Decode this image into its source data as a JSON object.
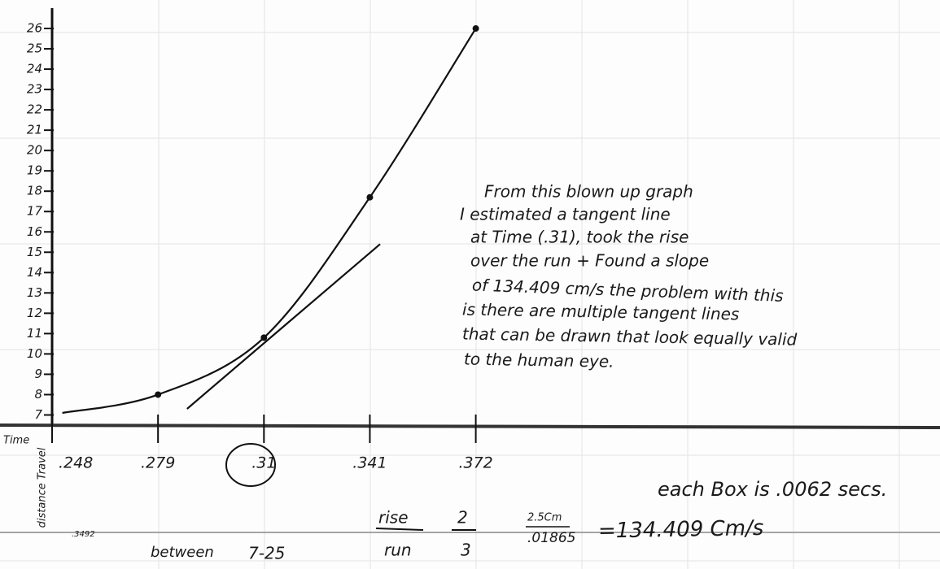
{
  "chart_data": {
    "type": "line",
    "x_label": "Time",
    "y_label": "distance Travel",
    "series": [
      {
        "x": [
          0.251,
          0.279,
          0.31,
          0.341,
          0.372
        ],
        "values": [
          7.1,
          8,
          10.8,
          17.7,
          26
        ],
        "color": "#111111",
        "markers": true
      },
      {
        "x": [
          0.2875,
          0.344
        ],
        "values": [
          7.3,
          15.4
        ],
        "color": "#111111",
        "markers": false
      }
    ],
    "xlim": [
      0.248,
      0.5
    ],
    "xticks": [
      {
        "value": 0.248,
        "label": ".248"
      },
      {
        "value": 0.279,
        "label": ".279"
      },
      {
        "value": 0.31,
        "label": ".31"
      },
      {
        "value": 0.341,
        "label": ".341"
      },
      {
        "value": 0.372,
        "label": ".372"
      }
    ],
    "ylim": [
      6.5,
      27
    ],
    "yticks": [
      7,
      8,
      9,
      10,
      11,
      12,
      13,
      14,
      15,
      16,
      17,
      18,
      19,
      20,
      21,
      22,
      23,
      24,
      25,
      26
    ],
    "grid": true,
    "annotations": [
      "From this blown up graph",
      "I estimated a tangent line",
      "at Time (.31), took the rise",
      "over the run + Found a slope",
      "of 134.409 cm/s the problem with this",
      "is there are multiple tangent lines",
      "that can be drawn that look equally valid",
      "to the human eye.",
      "each Box is .0062 secs.",
      "rise",
      "run",
      "2",
      "3",
      "2.5Cm",
      ".01865",
      "=134.409 Cm/s",
      "between",
      "7-25",
      ".3492"
    ]
  }
}
